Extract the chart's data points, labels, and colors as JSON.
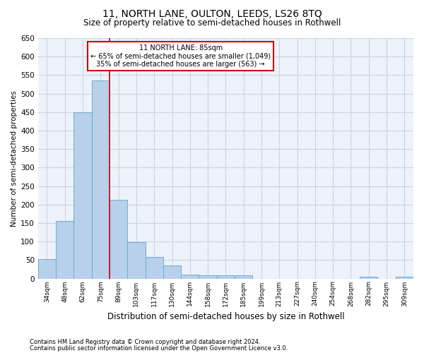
{
  "title1": "11, NORTH LANE, OULTON, LEEDS, LS26 8TQ",
  "title2": "Size of property relative to semi-detached houses in Rothwell",
  "xlabel": "Distribution of semi-detached houses by size in Rothwell",
  "ylabel": "Number of semi-detached properties",
  "footnote1": "Contains HM Land Registry data © Crown copyright and database right 2024.",
  "footnote2": "Contains public sector information licensed under the Open Government Licence v3.0.",
  "categories": [
    "34sqm",
    "48sqm",
    "62sqm",
    "75sqm",
    "89sqm",
    "103sqm",
    "117sqm",
    "130sqm",
    "144sqm",
    "158sqm",
    "172sqm",
    "185sqm",
    "199sqm",
    "213sqm",
    "227sqm",
    "240sqm",
    "254sqm",
    "268sqm",
    "282sqm",
    "295sqm",
    "309sqm"
  ],
  "values": [
    52,
    156,
    449,
    536,
    213,
    98,
    59,
    35,
    11,
    9,
    9,
    8,
    0,
    0,
    0,
    0,
    0,
    0,
    5,
    0,
    5
  ],
  "bar_color": "#b8d0ea",
  "bar_edge_color": "#6aadd5",
  "annotation_title": "11 NORTH LANE: 85sqm",
  "annotation_line1": "← 65% of semi-detached houses are smaller (1,049)",
  "annotation_line2": "35% of semi-detached houses are larger (563) →",
  "annotation_box_color": "#ffffff",
  "annotation_box_edge": "#cc0000",
  "vline_color": "#cc0000",
  "ylim": [
    0,
    650
  ],
  "yticks": [
    0,
    50,
    100,
    150,
    200,
    250,
    300,
    350,
    400,
    450,
    500,
    550,
    600,
    650
  ],
  "grid_color": "#c8d4e8",
  "background_color": "#eef2fa"
}
